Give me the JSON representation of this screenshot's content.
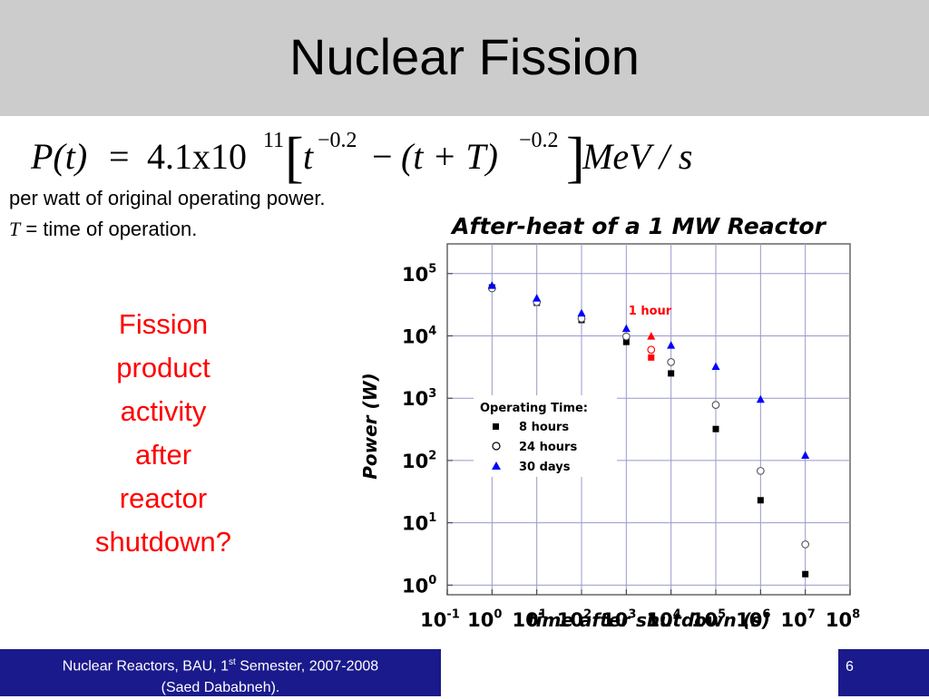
{
  "slide": {
    "title": "Nuclear Fission",
    "description_line1": "per watt of original operating power.",
    "description_T": "T",
    "description_line2": " = time of operation.",
    "question": [
      "Fission",
      "product",
      "activity",
      "after",
      "reactor",
      "shutdown?"
    ],
    "footer_left_a": "Nuclear Reactors, BAU, 1",
    "footer_left_sup": "st",
    "footer_left_b": " Semester, 2007-2008",
    "footer_left_line2": "(Saed Dababneh).",
    "page_number": "6"
  },
  "formula": {
    "lhs": "P(t)",
    "eq": "=",
    "coef": "4.1x10",
    "coef_exp": "11",
    "t1": "t",
    "exp1": "−0.2",
    "minus": "−",
    "term2": "(t + T)",
    "exp2": "−0.2",
    "unit": "MeV / s"
  },
  "colors": {
    "title_bar": "#cccccc",
    "footer": "#1a1a8c",
    "question_text": "#ff0000",
    "grid": "#9999cc",
    "series_8h": "#000000",
    "series_30d": "#0000ff",
    "one_hour": "#ff0000"
  },
  "chart_data": {
    "type": "scatter",
    "title": "After-heat of a 1 MW Reactor",
    "xlabel": "time after shutdown (s)",
    "ylabel": "Power (W)",
    "x_scale": "log",
    "y_scale": "log",
    "xlim": [
      0.1,
      100000000
    ],
    "ylim": [
      0.7,
      300000
    ],
    "grid": true,
    "x_ticks": [
      {
        "value": 0.1,
        "base": "10",
        "exp": "-1"
      },
      {
        "value": 1,
        "base": "10",
        "exp": "0"
      },
      {
        "value": 10,
        "base": "10",
        "exp": "1"
      },
      {
        "value": 100,
        "base": "10",
        "exp": "2"
      },
      {
        "value": 1000,
        "base": "10",
        "exp": "3"
      },
      {
        "value": 10000,
        "base": "10",
        "exp": "4"
      },
      {
        "value": 100000,
        "base": "10",
        "exp": "5"
      },
      {
        "value": 1000000,
        "base": "10",
        "exp": "6"
      },
      {
        "value": 10000000,
        "base": "10",
        "exp": "7"
      },
      {
        "value": 100000000,
        "base": "10",
        "exp": "8"
      }
    ],
    "y_ticks": [
      {
        "value": 1,
        "base": "10",
        "exp": "0"
      },
      {
        "value": 10,
        "base": "10",
        "exp": "1"
      },
      {
        "value": 100,
        "base": "10",
        "exp": "2"
      },
      {
        "value": 1000,
        "base": "10",
        "exp": "3"
      },
      {
        "value": 10000,
        "base": "10",
        "exp": "4"
      },
      {
        "value": 100000,
        "base": "10",
        "exp": "5"
      }
    ],
    "legend": {
      "title": "Operating Time:",
      "position": "center-left",
      "items": [
        "8 hours",
        "24 hours",
        "30 days"
      ]
    },
    "series": [
      {
        "name": "8 hours",
        "marker": "square-filled",
        "x": [
          1,
          10,
          100,
          1000,
          10000,
          100000,
          1000000,
          10000000
        ],
        "y": [
          60000,
          34000,
          18000,
          8000,
          2500,
          320,
          23,
          1.5
        ]
      },
      {
        "name": "24 hours",
        "marker": "circle-open",
        "x": [
          1,
          10,
          100,
          1000,
          10000,
          100000,
          1000000,
          10000000
        ],
        "y": [
          58000,
          35000,
          19000,
          9800,
          3800,
          780,
          68,
          4.5
        ]
      },
      {
        "name": "30 days",
        "marker": "triangle-filled",
        "x": [
          1,
          10,
          100,
          1000,
          10000,
          100000,
          1000000,
          10000000
        ],
        "y": [
          64000,
          40000,
          23000,
          13000,
          7000,
          3200,
          950,
          120
        ]
      }
    ],
    "annotation": {
      "text": "1 hour",
      "x": 3600,
      "points": [
        {
          "series": "8 hours",
          "y": 4500
        },
        {
          "series": "24 hours",
          "y": 6000
        },
        {
          "series": "30 days",
          "y": 9800
        }
      ]
    }
  }
}
